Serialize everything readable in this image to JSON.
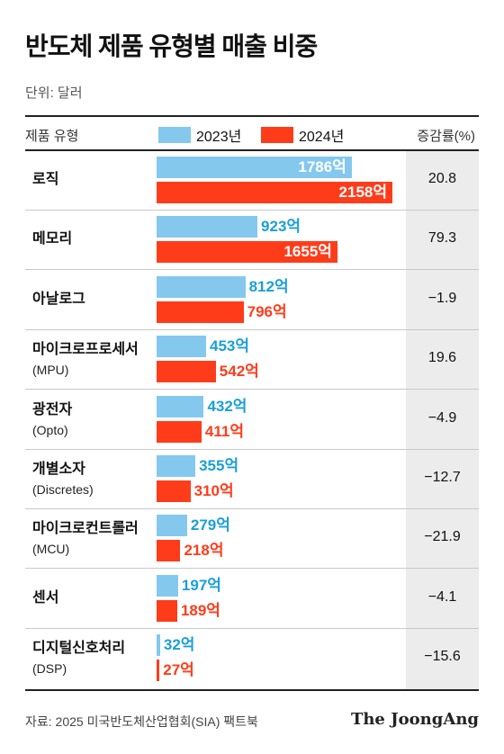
{
  "title": "반도체 제품 유형별 매출 비중",
  "unit": "단위: 달러",
  "header": {
    "category": "제품 유형",
    "rate": "증감률(%)"
  },
  "colors": {
    "y2023": "#84c8ee",
    "y2024": "#ff3c1a",
    "y2023_text": "#1a9fd8"
  },
  "footer": {
    "source": "자료: 2025 미국반도체산업협회(SIA) 팩트북",
    "brand": "The JoongAng"
  },
  "chart_data": {
    "type": "bar",
    "series": [
      {
        "name": "2023년",
        "values": [
          1786,
          923,
          812,
          453,
          432,
          355,
          279,
          197,
          32
        ]
      },
      {
        "name": "2024년",
        "values": [
          2158,
          1655,
          796,
          542,
          411,
          310,
          218,
          189,
          27
        ]
      }
    ],
    "categories": [
      "로직",
      "메모리",
      "아날로그",
      "마이크로프로세서",
      "광전자",
      "개별소자",
      "마이크로컨트롤러",
      "센서",
      "디지털신호처리"
    ],
    "subcategories": [
      "",
      "",
      "",
      "(MPU)",
      "(Opto)",
      "(Discretes)",
      "(MCU)",
      "",
      "(DSP)"
    ],
    "labels_2023": [
      "1786억",
      "923억",
      "812억",
      "453억",
      "432억",
      "355억",
      "279억",
      "197억",
      "32억"
    ],
    "labels_2024": [
      "2158억",
      "1655억",
      "796억",
      "542억",
      "411억",
      "310억",
      "218억",
      "189억",
      "27억"
    ],
    "change_pct": [
      "20.8",
      "79.3",
      "−1.9",
      "19.6",
      "−4.9",
      "−12.7",
      "−21.9",
      "−4.1",
      "−15.6"
    ],
    "xlim": [
      0,
      2158
    ]
  }
}
